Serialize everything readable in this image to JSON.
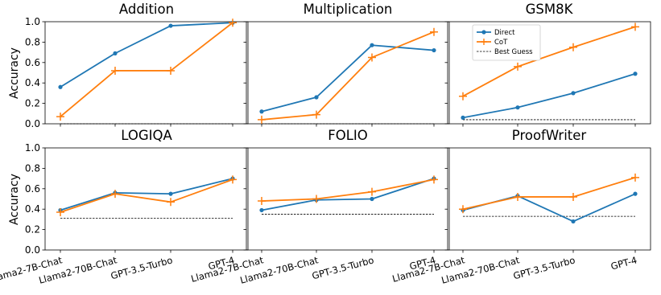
{
  "chart_data": {
    "type": "line",
    "categories": [
      "Llama2-7B-Chat",
      "Llama2-70B-Chat",
      "GPT-3.5-Turbo",
      "GPT-4"
    ],
    "ylabel": "Accuracy",
    "ylim": [
      0.0,
      1.0
    ],
    "yticks": [
      "0.0",
      "0.2",
      "0.4",
      "0.6",
      "0.8",
      "1.0"
    ],
    "grid": false,
    "legend": {
      "placement": "top-left",
      "panel": "GSM8K",
      "entries": [
        "Direct",
        "CoT",
        "Best Guess"
      ]
    },
    "colors": {
      "Direct": "#1f77b4",
      "CoT": "#ff7f0e",
      "Best Guess": "#000000"
    },
    "panels": [
      {
        "title": "Addition",
        "series": [
          {
            "name": "Direct",
            "values": [
              0.36,
              0.69,
              0.96,
              0.99
            ]
          },
          {
            "name": "CoT",
            "values": [
              0.07,
              0.52,
              0.52,
              0.99
            ]
          }
        ],
        "best_guess": 0.0
      },
      {
        "title": "Multiplication",
        "series": [
          {
            "name": "Direct",
            "values": [
              0.12,
              0.26,
              0.77,
              0.72
            ]
          },
          {
            "name": "CoT",
            "values": [
              0.04,
              0.09,
              0.65,
              0.9
            ]
          }
        ],
        "best_guess": 0.0
      },
      {
        "title": "GSM8K",
        "series": [
          {
            "name": "Direct",
            "values": [
              0.06,
              0.16,
              0.3,
              0.49
            ]
          },
          {
            "name": "CoT",
            "values": [
              0.27,
              0.56,
              0.75,
              0.95
            ]
          }
        ],
        "best_guess": 0.04
      },
      {
        "title": "LOGIQA",
        "series": [
          {
            "name": "Direct",
            "values": [
              0.39,
              0.56,
              0.55,
              0.7
            ]
          },
          {
            "name": "CoT",
            "values": [
              0.37,
              0.55,
              0.47,
              0.69
            ]
          }
        ],
        "best_guess": 0.31
      },
      {
        "title": "FOLIO",
        "series": [
          {
            "name": "Direct",
            "values": [
              0.39,
              0.49,
              0.5,
              0.7
            ]
          },
          {
            "name": "CoT",
            "values": [
              0.48,
              0.5,
              0.57,
              0.69
            ]
          }
        ],
        "best_guess": 0.35
      },
      {
        "title": "ProofWriter",
        "series": [
          {
            "name": "Direct",
            "values": [
              0.39,
              0.53,
              0.28,
              0.55
            ]
          },
          {
            "name": "CoT",
            "values": [
              0.4,
              0.52,
              0.52,
              0.71
            ]
          }
        ],
        "best_guess": 0.33
      }
    ]
  }
}
